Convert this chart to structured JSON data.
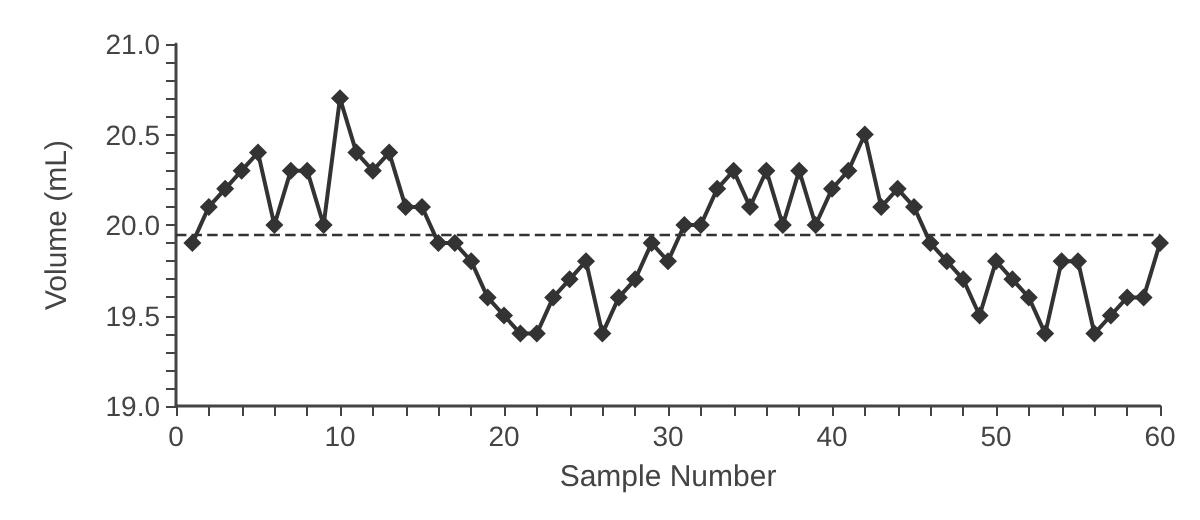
{
  "chart_data": {
    "type": "line",
    "xlabel": "Sample Number",
    "ylabel": "Volume (mL)",
    "x": [
      1,
      2,
      3,
      4,
      5,
      6,
      7,
      8,
      9,
      10,
      11,
      12,
      13,
      14,
      15,
      16,
      17,
      18,
      19,
      20,
      21,
      22,
      23,
      24,
      25,
      26,
      27,
      28,
      29,
      30,
      31,
      32,
      33,
      34,
      35,
      36,
      37,
      38,
      39,
      40,
      41,
      42,
      43,
      44,
      45,
      46,
      47,
      48,
      49,
      50,
      51,
      52,
      53,
      54,
      55,
      56,
      57,
      58,
      59,
      60
    ],
    "series": [
      {
        "color": "#333333",
        "values": [
          19.9,
          20.1,
          20.2,
          20.3,
          20.4,
          20.0,
          20.3,
          20.3,
          20.0,
          20.7,
          20.4,
          20.3,
          20.4,
          20.1,
          20.1,
          19.9,
          19.9,
          19.8,
          19.6,
          19.5,
          19.4,
          19.4,
          19.6,
          19.7,
          19.8,
          19.4,
          19.6,
          19.7,
          19.9,
          19.8,
          20.0,
          20.0,
          20.2,
          20.3,
          20.1,
          20.3,
          20.0,
          20.3,
          20.0,
          20.2,
          20.3,
          20.5,
          20.1,
          20.2,
          20.1,
          19.9,
          19.8,
          19.7,
          19.5,
          19.8,
          19.7,
          19.6,
          19.4,
          19.8,
          19.8,
          19.4,
          19.5,
          19.6,
          19.6,
          19.9
        ]
      }
    ],
    "xlim": [
      0,
      60
    ],
    "xticks": [
      0,
      {
        "value": 2,
        "label": null
      },
      {
        "value": 4,
        "label": null
      },
      {
        "value": 6,
        "label": null
      },
      {
        "value": 8,
        "label": null
      },
      10,
      {
        "value": 12,
        "label": null
      },
      {
        "value": 14,
        "label": null
      },
      {
        "value": 16,
        "label": null
      },
      {
        "value": 18,
        "label": null
      },
      20,
      {
        "value": 22,
        "label": null
      },
      {
        "value": 24,
        "label": null
      },
      {
        "value": 26,
        "label": null
      },
      {
        "value": 28,
        "label": null
      },
      30,
      {
        "value": 32,
        "label": null
      },
      {
        "value": 34,
        "label": null
      },
      {
        "value": 36,
        "label": null
      },
      {
        "value": 38,
        "label": null
      },
      40,
      {
        "value": 42,
        "label": null
      },
      {
        "value": 44,
        "label": null
      },
      {
        "value": 46,
        "label": null
      },
      {
        "value": 48,
        "label": null
      },
      50,
      {
        "value": 52,
        "label": null
      },
      {
        "value": 54,
        "label": null
      },
      {
        "value": 56,
        "label": null
      },
      {
        "value": 58,
        "label": null
      },
      60
    ],
    "ylim": [
      19.0,
      21.0
    ],
    "yticks": [
      {
        "value": 19,
        "label": "19.0"
      },
      {
        "value": 19.1,
        "label": null
      },
      {
        "value": 19.2,
        "label": null
      },
      {
        "value": 19.3,
        "label": null
      },
      {
        "value": 19.4,
        "label": null
      },
      {
        "value": 19.5,
        "label": "19.5"
      },
      {
        "value": 19.6,
        "label": null
      },
      {
        "value": 19.7,
        "label": null
      },
      {
        "value": 19.8,
        "label": null
      },
      {
        "value": 19.9,
        "label": null
      },
      {
        "value": 20,
        "label": "20.0"
      },
      {
        "value": 20.1,
        "label": null
      },
      {
        "value": 20.2,
        "label": null
      },
      {
        "value": 20.3,
        "label": null
      },
      {
        "value": 20.4,
        "label": null
      },
      {
        "value": 20.5,
        "label": "20.5"
      },
      {
        "value": 20.6,
        "label": null
      },
      {
        "value": 20.7,
        "label": null
      },
      {
        "value": 20.8,
        "label": null
      },
      {
        "value": 20.9,
        "label": null
      },
      {
        "value": 21,
        "label": "21.0"
      }
    ],
    "ref_lines": [
      {
        "axis": "y",
        "value": 19.95,
        "line_style": "dashed",
        "color": "#333333"
      }
    ],
    "marker": "diamond",
    "line_style": "solid",
    "grid": false
  }
}
